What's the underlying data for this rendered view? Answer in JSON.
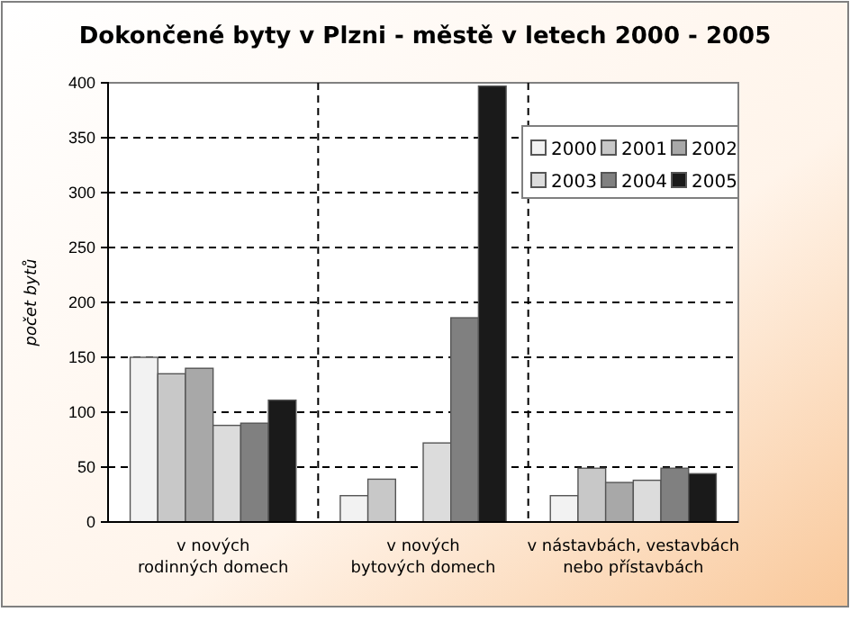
{
  "chart_data": {
    "type": "bar",
    "title": "Dokončené byty v Plzni - městě v letech 2000 - 2005",
    "ylabel": "počet bytů",
    "categories": [
      "v nových rodinných domech",
      "v nových bytových domech",
      "v nástavbách, vestavbách nebo přístavbách"
    ],
    "series": [
      {
        "name": "2000",
        "color": "#f2f2f2",
        "values": [
          150,
          24,
          24
        ]
      },
      {
        "name": "2001",
        "color": "#c8c8c8",
        "values": [
          135,
          39,
          49
        ]
      },
      {
        "name": "2002",
        "color": "#a8a8a8",
        "values": [
          140,
          0,
          36
        ]
      },
      {
        "name": "2003",
        "color": "#dcdcdc",
        "values": [
          88,
          72,
          38
        ]
      },
      {
        "name": "2004",
        "color": "#808080",
        "values": [
          90,
          186,
          49
        ]
      },
      {
        "name": "2005",
        "color": "#1a1a1a",
        "values": [
          111,
          397,
          44
        ]
      }
    ],
    "ylim": [
      0,
      400
    ],
    "yticks": [
      0,
      50,
      100,
      150,
      200,
      250,
      300,
      350,
      400
    ],
    "grid": true,
    "legend": "top right"
  }
}
